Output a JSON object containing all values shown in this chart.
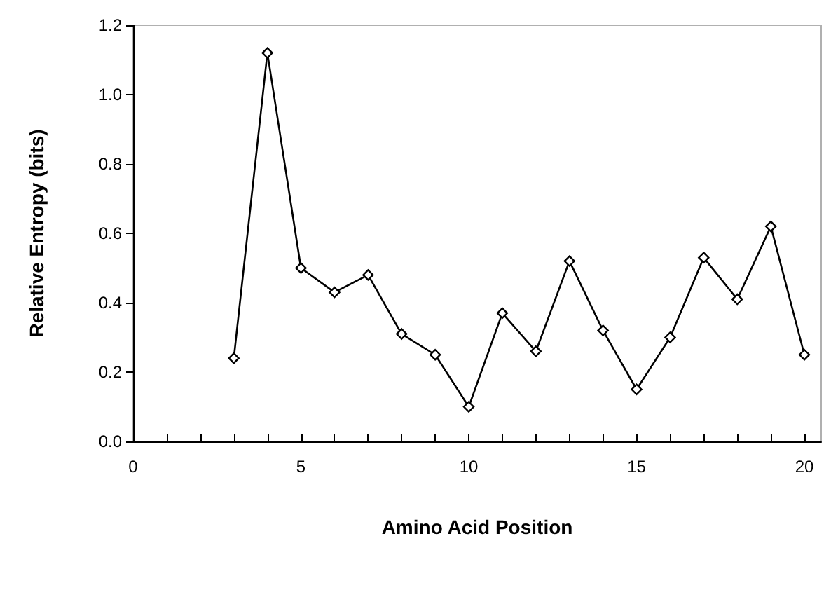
{
  "chart_data": {
    "type": "line",
    "xlabel": "Amino Acid Position",
    "ylabel": "Relative Entropy (bits)",
    "x": [
      3,
      4,
      5,
      6,
      7,
      8,
      9,
      10,
      11,
      12,
      13,
      14,
      15,
      16,
      17,
      18,
      19,
      20
    ],
    "series": [
      {
        "color": "#000000",
        "values": [
          0.24,
          1.12,
          0.5,
          0.43,
          0.48,
          0.31,
          0.25,
          0.1,
          0.37,
          0.26,
          0.52,
          0.32,
          0.15,
          0.3,
          0.53,
          0.41,
          0.62,
          0.25
        ]
      }
    ],
    "xlim": [
      0,
      20.5
    ],
    "xticks": [
      0,
      {
        "value": 1,
        "label": null
      },
      {
        "value": 2,
        "label": null
      },
      {
        "value": 3,
        "label": null
      },
      {
        "value": 4,
        "label": null
      },
      5,
      {
        "value": 6,
        "label": null
      },
      {
        "value": 7,
        "label": null
      },
      {
        "value": 8,
        "label": null
      },
      {
        "value": 9,
        "label": null
      },
      10,
      {
        "value": 11,
        "label": null
      },
      {
        "value": 12,
        "label": null
      },
      {
        "value": 13,
        "label": null
      },
      {
        "value": 14,
        "label": null
      },
      15,
      {
        "value": 16,
        "label": null
      },
      {
        "value": 17,
        "label": null
      },
      {
        "value": 18,
        "label": null
      },
      {
        "value": 19,
        "label": null
      },
      20
    ],
    "ylim": [
      0,
      1.2
    ],
    "yticks": [
      {
        "value": 0,
        "label": "0.0"
      },
      {
        "value": 0.2,
        "label": "0.2"
      },
      {
        "value": 0.4,
        "label": "0.4"
      },
      {
        "value": 0.6,
        "label": "0.6"
      },
      {
        "value": 0.8,
        "label": "0.8"
      },
      {
        "value": 1,
        "label": "1.0"
      },
      {
        "value": 1.2,
        "label": "1.2"
      }
    ],
    "grid": false,
    "marker": "diamond",
    "line_style": "solid"
  }
}
